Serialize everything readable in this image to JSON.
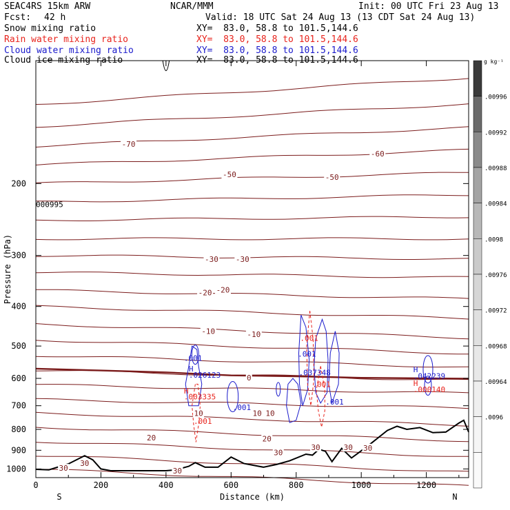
{
  "header": {
    "model": "SEAC4RS 15km ARW",
    "org": "NCAR/MMM",
    "init": "Init: 00 UTC Fri 23 Aug 13",
    "fcst_label": "Fcst:",
    "fcst_value": "42 h",
    "valid": "Valid: 18 UTC Sat 24 Aug 13 (13 CDT Sat 24 Aug 13)",
    "fields": [
      {
        "name": "Snow mixing ratio",
        "xy": "XY=  83.0, 58.8 to 101.5,144.6",
        "color": "#000000"
      },
      {
        "name": "Rain water mixing ratio",
        "xy": "XY=  83.0, 58.8 to 101.5,144.6",
        "color": "#e8231c"
      },
      {
        "name": "Cloud water mixing ratio",
        "xy": "XY=  83.0, 58.8 to 101.5,144.6",
        "color": "#1a1acb"
      },
      {
        "name": "Cloud ice mixing ratio",
        "xy": "XY=  83.0, 58.8 to 101.5,144.6",
        "color": "#000000"
      }
    ]
  },
  "chart_data": {
    "type": "cross-section",
    "xlabel": "Distance (km)",
    "ylabel": "Pressure (hPa)",
    "xlim": [
      0,
      1330
    ],
    "ylim_hpa": [
      1050,
      100
    ],
    "y_scale": "log",
    "x_ticks": [
      "0",
      "200",
      "400",
      "600",
      "800",
      "1000",
      "1200"
    ],
    "y_ticks": [
      "200",
      "300",
      "400",
      "500",
      "600",
      "700",
      "800",
      "900",
      "1000"
    ],
    "endpoints": {
      "left": "S",
      "right": "N"
    },
    "colorbar": {
      "unit": "g kg⁻¹",
      "labels": [
        ".00996",
        ".00992",
        ".00988",
        ".00984",
        ".0098",
        ".00976",
        ".00972",
        ".00968",
        ".00964",
        ".0096"
      ],
      "colors": [
        "#3a3a3a",
        "#6a6a6a",
        "#8a8a8a",
        "#a4a4a4",
        "#b8b8b8",
        "#cacaca",
        "#d6d6d6",
        "#e0e0e0",
        "#e8e8e8",
        "#efefef",
        "#f5f5f5",
        "#fafafa"
      ]
    },
    "colors": {
      "isotherm": "#7a1a1a",
      "freezing": "#7a1a1a",
      "terrain": "#000000",
      "rain": "#e8231c",
      "cloud": "#1a1acb"
    },
    "isotherm_labels": [
      {
        "text": "-70",
        "km": 285,
        "p": 160
      },
      {
        "text": "-60",
        "km": 1050,
        "p": 169
      },
      {
        "text": "-50",
        "km": 595,
        "p": 190
      },
      {
        "text": "-50",
        "km": 910,
        "p": 193
      },
      {
        "text": "-30",
        "km": 540,
        "p": 306
      },
      {
        "text": "-30",
        "km": 635,
        "p": 306
      },
      {
        "text": "-20",
        "km": 575,
        "p": 364
      },
      {
        "text": "-20",
        "km": 520,
        "p": 370
      },
      {
        "text": "-10",
        "km": 530,
        "p": 460
      },
      {
        "text": "-10",
        "km": 670,
        "p": 468
      },
      {
        "text": "0",
        "km": 655,
        "p": 598
      },
      {
        "text": "10",
        "km": 500,
        "p": 730
      },
      {
        "text": "10",
        "km": 680,
        "p": 730
      },
      {
        "text": "10",
        "km": 720,
        "p": 730
      },
      {
        "text": "20",
        "km": 355,
        "p": 838
      },
      {
        "text": "20",
        "km": 710,
        "p": 843
      },
      {
        "text": "30",
        "km": 745,
        "p": 912
      },
      {
        "text": "30",
        "km": 860,
        "p": 885
      },
      {
        "text": "30",
        "km": 960,
        "p": 885
      },
      {
        "text": "30",
        "km": 1020,
        "p": 888
      },
      {
        "text": "30",
        "km": 85,
        "p": 995
      },
      {
        "text": "30",
        "km": 150,
        "p": 968
      },
      {
        "text": "30",
        "km": 435,
        "p": 1010
      }
    ],
    "isotherms_p_left": [
      128,
      145,
      162,
      180,
      200,
      222,
      246,
      273,
      300,
      330,
      365,
      400,
      442,
      483,
      527,
      573,
      622,
      676,
      730,
      790,
      856,
      926,
      1002
    ],
    "isotherm_slope": [
      0.86,
      0.88,
      0.9,
      0.92,
      0.94,
      0.96,
      0.98,
      1.0,
      1.02,
      1.03,
      1.05,
      1.07,
      1.08,
      1.08,
      1.07,
      1.06,
      1.05,
      1.05,
      1.07,
      1.08,
      1.09,
      1.1,
      1.1
    ],
    "freezing_level_p": [
      [
        0,
        568
      ],
      [
        200,
        574
      ],
      [
        400,
        580
      ],
      [
        600,
        590
      ],
      [
        800,
        593
      ],
      [
        1000,
        598
      ],
      [
        1200,
        600
      ],
      [
        1330,
        601
      ]
    ],
    "terrain_p": [
      [
        0,
        1002
      ],
      [
        40,
        1005
      ],
      [
        100,
        972
      ],
      [
        150,
        928
      ],
      [
        175,
        950
      ],
      [
        200,
        1000
      ],
      [
        230,
        1010
      ],
      [
        300,
        1010
      ],
      [
        400,
        1010
      ],
      [
        430,
        1005
      ],
      [
        470,
        985
      ],
      [
        490,
        965
      ],
      [
        520,
        990
      ],
      [
        560,
        990
      ],
      [
        600,
        935
      ],
      [
        640,
        970
      ],
      [
        700,
        990
      ],
      [
        740,
        975
      ],
      [
        780,
        955
      ],
      [
        830,
        920
      ],
      [
        850,
        925
      ],
      [
        870,
        895
      ],
      [
        890,
        905
      ],
      [
        910,
        960
      ],
      [
        940,
        890
      ],
      [
        970,
        940
      ],
      [
        990,
        915
      ],
      [
        1030,
        866
      ],
      [
        1080,
        805
      ],
      [
        1110,
        786
      ],
      [
        1140,
        800
      ],
      [
        1180,
        792
      ],
      [
        1220,
        815
      ],
      [
        1260,
        812
      ],
      [
        1300,
        772
      ],
      [
        1315,
        760
      ],
      [
        1330,
        812
      ]
    ],
    "labels": [
      {
        "text": "000995",
        "km": 0,
        "p": 225,
        "color": "#000000"
      },
      {
        "text": "H",
        "km": 470,
        "p": 568,
        "color": "#1a1acb"
      },
      {
        "text": ".026123",
        "km": 470,
        "p": 588,
        "color": "#1a1acb"
      },
      {
        "text": ".001",
        "km": 455,
        "p": 535,
        "color": "#1a1acb"
      },
      {
        "text": "H",
        "km": 455,
        "p": 643,
        "color": "#e8231c"
      },
      {
        "text": ".003335",
        "km": 455,
        "p": 665,
        "color": "#e8231c"
      },
      {
        "text": ".001",
        "km": 485,
        "p": 763,
        "color": "#e8231c"
      },
      {
        "text": ".001",
        "km": 605,
        "p": 706,
        "color": "#1a1acb"
      },
      {
        "text": ".001",
        "km": 805,
        "p": 523,
        "color": "#1a1acb"
      },
      {
        "text": ".001",
        "km": 812,
        "p": 478,
        "color": "#e8231c"
      },
      {
        "text": ".037348",
        "km": 808,
        "p": 580,
        "color": "#1a1acb"
      },
      {
        "text": ".001",
        "km": 850,
        "p": 620,
        "color": "#e8231c"
      },
      {
        "text": ".001",
        "km": 890,
        "p": 685,
        "color": "#1a1acb"
      },
      {
        "text": "H",
        "km": 1160,
        "p": 570,
        "color": "#1a1acb"
      },
      {
        "text": ".042239",
        "km": 1160,
        "p": 592,
        "color": "#1a1acb"
      },
      {
        "text": "H",
        "km": 1160,
        "p": 616,
        "color": "#e8231c"
      },
      {
        "text": ".000140",
        "km": 1160,
        "p": 638,
        "color": "#e8231c"
      }
    ]
  }
}
